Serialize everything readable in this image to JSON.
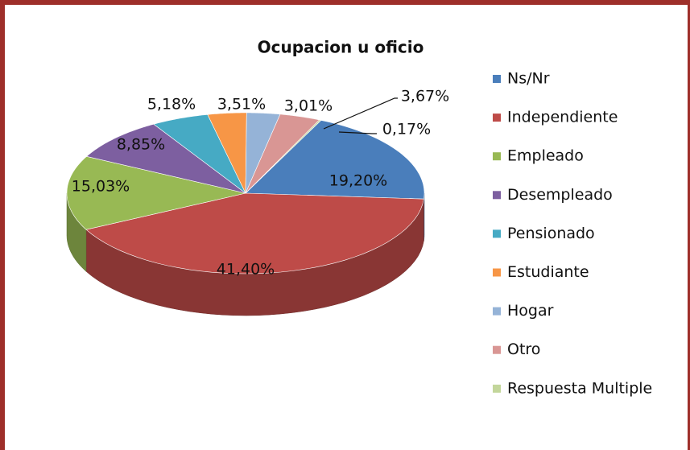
{
  "chart_data": {
    "type": "pie3d",
    "title": "Ocupacion u oficio",
    "categories": [
      "Ns/Nr",
      "Independiente",
      "Empleado",
      "Desempleado",
      "Pensionado",
      "Estudiante",
      "Hogar",
      "Otro",
      "Respuesta Multiple"
    ],
    "values": [
      19.2,
      41.4,
      15.03,
      8.85,
      5.18,
      3.51,
      3.01,
      3.67,
      0.17
    ],
    "value_labels": [
      "19,20%",
      "41,40%",
      "15,03%",
      "8,85%",
      "5,18%",
      "3,51%",
      "3,01%",
      "3,67%",
      "0,17%"
    ],
    "colors": [
      "#4a7ebb",
      "#be4b48",
      "#98b954",
      "#7d5fa0",
      "#46aac4",
      "#f79646",
      "#95b3d7",
      "#d99694",
      "#c3d69b"
    ],
    "legend": "right"
  }
}
